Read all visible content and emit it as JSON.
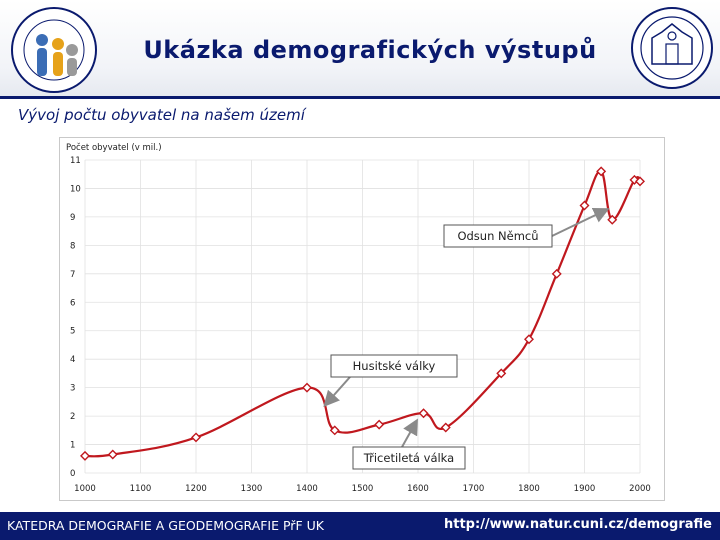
{
  "slide": {
    "title": "Ukázka demografických výstupů",
    "subtitle": "Vývoj počtu obyvatel na našem území"
  },
  "footer": {
    "left": "KATEDRA DEMOGRAFIE A GEODEMOGRAFIE PřF UK",
    "right": "http://www.natur.cuni.cz/demografie"
  },
  "colors": {
    "accent": "#0a1a6e",
    "series": "#c0181e",
    "marker_fill": "#ffffff",
    "callout_arrow": "#8a8a8a"
  },
  "chart_data": {
    "type": "line",
    "ylabel": "Počet obyvatel (v mil.)",
    "xlabel": "",
    "xlim": [
      1000,
      2000
    ],
    "ylim": [
      0,
      11
    ],
    "x_ticks": [
      1000,
      1100,
      1200,
      1300,
      1400,
      1500,
      1600,
      1700,
      1800,
      1900,
      2000
    ],
    "y_ticks": [
      0,
      1,
      2,
      3,
      4,
      5,
      6,
      7,
      8,
      9,
      10,
      11
    ],
    "grid": true,
    "legend": "none",
    "series": [
      {
        "x": [
          1000,
          1050,
          1200,
          1400,
          1450,
          1530,
          1610,
          1650,
          1750,
          1800,
          1850,
          1900,
          1930,
          1950,
          1990,
          2000
        ],
        "y": [
          0.6,
          0.65,
          1.25,
          3.0,
          1.5,
          1.7,
          2.1,
          1.6,
          3.5,
          4.7,
          7.0,
          9.4,
          10.6,
          8.9,
          10.3,
          10.25
        ]
      }
    ],
    "annotations": [
      {
        "text": "Odsun Němců",
        "x": 1945,
        "y": 9.3
      },
      {
        "text": "Husitské války",
        "x": 1433,
        "y": 2.4
      },
      {
        "text": "Třicetiletá válka",
        "x": 1640,
        "y": 1.9
      }
    ]
  }
}
